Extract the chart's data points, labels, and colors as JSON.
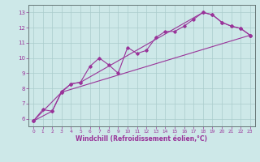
{
  "title": "",
  "xlabel": "Windchill (Refroidissement éolien,°C)",
  "ylabel": "",
  "background_color": "#cde8e8",
  "grid_color": "#aacccc",
  "line_color": "#993399",
  "xlim": [
    -0.5,
    23.5
  ],
  "ylim": [
    5.5,
    13.5
  ],
  "xticks": [
    0,
    1,
    2,
    3,
    4,
    5,
    6,
    7,
    8,
    9,
    10,
    11,
    12,
    13,
    14,
    15,
    16,
    17,
    18,
    19,
    20,
    21,
    22,
    23
  ],
  "yticks": [
    6,
    7,
    8,
    9,
    10,
    11,
    12,
    13
  ],
  "line1_x": [
    0,
    1,
    2,
    3,
    4,
    5,
    6,
    7,
    8,
    9,
    10,
    11,
    12,
    13,
    14,
    15,
    16,
    17,
    18,
    19,
    20,
    21,
    22,
    23
  ],
  "line1_y": [
    5.85,
    6.6,
    6.5,
    7.8,
    8.3,
    8.4,
    9.45,
    10.0,
    9.55,
    9.0,
    10.7,
    10.3,
    10.5,
    11.35,
    11.75,
    11.75,
    12.1,
    12.55,
    13.0,
    12.85,
    12.35,
    12.1,
    11.95,
    11.5
  ],
  "line2_x": [
    0,
    2,
    3,
    4,
    5,
    18,
    19,
    20,
    21,
    22,
    23
  ],
  "line2_y": [
    5.85,
    6.5,
    7.75,
    8.3,
    8.4,
    13.0,
    12.85,
    12.35,
    12.1,
    11.95,
    11.5
  ],
  "line3_x": [
    0,
    3,
    23
  ],
  "line3_y": [
    5.85,
    7.75,
    11.5
  ]
}
